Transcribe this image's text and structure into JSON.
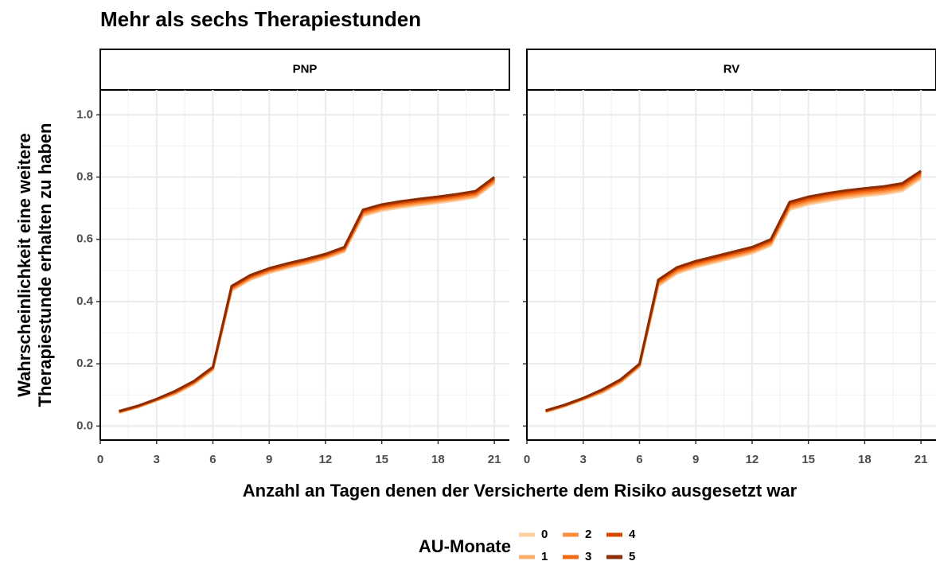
{
  "title": "Mehr als sechs Therapiestunden",
  "x_label": "Anzahl an Tagen denen der Versicherte dem Risiko ausgesetzt war",
  "y_label": [
    "Wahrscheinlichkeit eine weitere",
    "Therapiestunde erhalten zu haben"
  ],
  "legend_title": "AU-Monate",
  "chart_data": [
    {
      "type": "line",
      "facet": "PNP",
      "grid": true,
      "x": [
        1,
        2,
        3,
        4,
        5,
        6,
        7,
        8,
        9,
        10,
        11,
        12,
        13,
        14,
        15,
        16,
        17,
        18,
        19,
        20,
        21
      ],
      "xlim": [
        0,
        21.8
      ],
      "xticks": [
        0,
        3,
        6,
        9,
        12,
        15,
        18,
        21
      ],
      "ylim": [
        -0.045,
        1.08
      ],
      "yticks": [
        {
          "value": 0,
          "label": "0.0"
        },
        0.2,
        0.4,
        0.6,
        0.8,
        {
          "value": 1,
          "label": "1.0"
        }
      ],
      "series": [
        {
          "name": "0",
          "color": "#fdd0a2",
          "values": [
            0.043,
            0.06,
            0.082,
            0.103,
            0.135,
            0.18,
            0.435,
            0.47,
            0.492,
            0.508,
            0.522,
            0.538,
            0.56,
            0.675,
            0.692,
            0.702,
            0.71,
            0.717,
            0.725,
            0.735,
            0.78
          ]
        },
        {
          "name": "1",
          "color": "#fdae6b",
          "values": [
            0.044,
            0.061,
            0.083,
            0.105,
            0.137,
            0.182,
            0.438,
            0.473,
            0.495,
            0.511,
            0.525,
            0.541,
            0.563,
            0.679,
            0.696,
            0.706,
            0.714,
            0.721,
            0.729,
            0.739,
            0.784
          ]
        },
        {
          "name": "2",
          "color": "#fd8d3c",
          "values": [
            0.045,
            0.062,
            0.084,
            0.107,
            0.139,
            0.184,
            0.441,
            0.476,
            0.498,
            0.514,
            0.528,
            0.544,
            0.566,
            0.683,
            0.7,
            0.71,
            0.718,
            0.725,
            0.733,
            0.743,
            0.788
          ]
        },
        {
          "name": "3",
          "color": "#f16913",
          "values": [
            0.046,
            0.063,
            0.085,
            0.109,
            0.141,
            0.186,
            0.444,
            0.479,
            0.501,
            0.517,
            0.531,
            0.547,
            0.569,
            0.687,
            0.704,
            0.714,
            0.722,
            0.729,
            0.737,
            0.747,
            0.792
          ]
        },
        {
          "name": "4",
          "color": "#d94801",
          "values": [
            0.047,
            0.064,
            0.086,
            0.111,
            0.143,
            0.188,
            0.447,
            0.482,
            0.504,
            0.52,
            0.534,
            0.55,
            0.572,
            0.691,
            0.708,
            0.718,
            0.726,
            0.733,
            0.741,
            0.751,
            0.796
          ]
        },
        {
          "name": "5",
          "color": "#8c2d04",
          "values": [
            0.048,
            0.065,
            0.087,
            0.113,
            0.145,
            0.19,
            0.45,
            0.485,
            0.507,
            0.523,
            0.537,
            0.553,
            0.575,
            0.695,
            0.712,
            0.722,
            0.73,
            0.737,
            0.745,
            0.755,
            0.8
          ]
        }
      ]
    },
    {
      "type": "line",
      "facet": "RV",
      "grid": true,
      "x": [
        1,
        2,
        3,
        4,
        5,
        6,
        7,
        8,
        9,
        10,
        11,
        12,
        13,
        14,
        15,
        16,
        17,
        18,
        19,
        20,
        21
      ],
      "xlim": [
        0,
        21.8
      ],
      "xticks": [
        0,
        3,
        6,
        9,
        12,
        15,
        18,
        21
      ],
      "ylim": [
        -0.045,
        1.08
      ],
      "yticks": [
        {
          "value": 0,
          "label": "0.0"
        },
        0.2,
        0.4,
        0.6,
        0.8,
        {
          "value": 1,
          "label": "1.0"
        }
      ],
      "series": [
        {
          "name": "0",
          "color": "#fdd0a2",
          "values": [
            0.045,
            0.063,
            0.085,
            0.107,
            0.14,
            0.19,
            0.45,
            0.49,
            0.51,
            0.525,
            0.54,
            0.555,
            0.58,
            0.695,
            0.712,
            0.723,
            0.732,
            0.739,
            0.745,
            0.755,
            0.795
          ]
        },
        {
          "name": "1",
          "color": "#fdae6b",
          "values": [
            0.046,
            0.064,
            0.086,
            0.109,
            0.142,
            0.192,
            0.454,
            0.494,
            0.514,
            0.529,
            0.544,
            0.559,
            0.584,
            0.7,
            0.717,
            0.728,
            0.737,
            0.744,
            0.75,
            0.76,
            0.8
          ]
        },
        {
          "name": "2",
          "color": "#fd8d3c",
          "values": [
            0.047,
            0.065,
            0.087,
            0.111,
            0.144,
            0.194,
            0.458,
            0.498,
            0.518,
            0.533,
            0.548,
            0.563,
            0.588,
            0.705,
            0.722,
            0.733,
            0.742,
            0.749,
            0.755,
            0.765,
            0.805
          ]
        },
        {
          "name": "3",
          "color": "#f16913",
          "values": [
            0.048,
            0.066,
            0.088,
            0.113,
            0.146,
            0.196,
            0.462,
            0.502,
            0.522,
            0.537,
            0.552,
            0.567,
            0.592,
            0.71,
            0.727,
            0.738,
            0.747,
            0.754,
            0.76,
            0.77,
            0.81
          ]
        },
        {
          "name": "4",
          "color": "#d94801",
          "values": [
            0.049,
            0.067,
            0.089,
            0.115,
            0.148,
            0.198,
            0.466,
            0.506,
            0.526,
            0.541,
            0.556,
            0.571,
            0.596,
            0.715,
            0.732,
            0.743,
            0.752,
            0.759,
            0.765,
            0.775,
            0.815
          ]
        },
        {
          "name": "5",
          "color": "#8c2d04",
          "values": [
            0.05,
            0.068,
            0.09,
            0.117,
            0.15,
            0.2,
            0.47,
            0.51,
            0.53,
            0.545,
            0.56,
            0.575,
            0.6,
            0.72,
            0.737,
            0.748,
            0.757,
            0.764,
            0.77,
            0.78,
            0.82
          ]
        }
      ]
    }
  ]
}
